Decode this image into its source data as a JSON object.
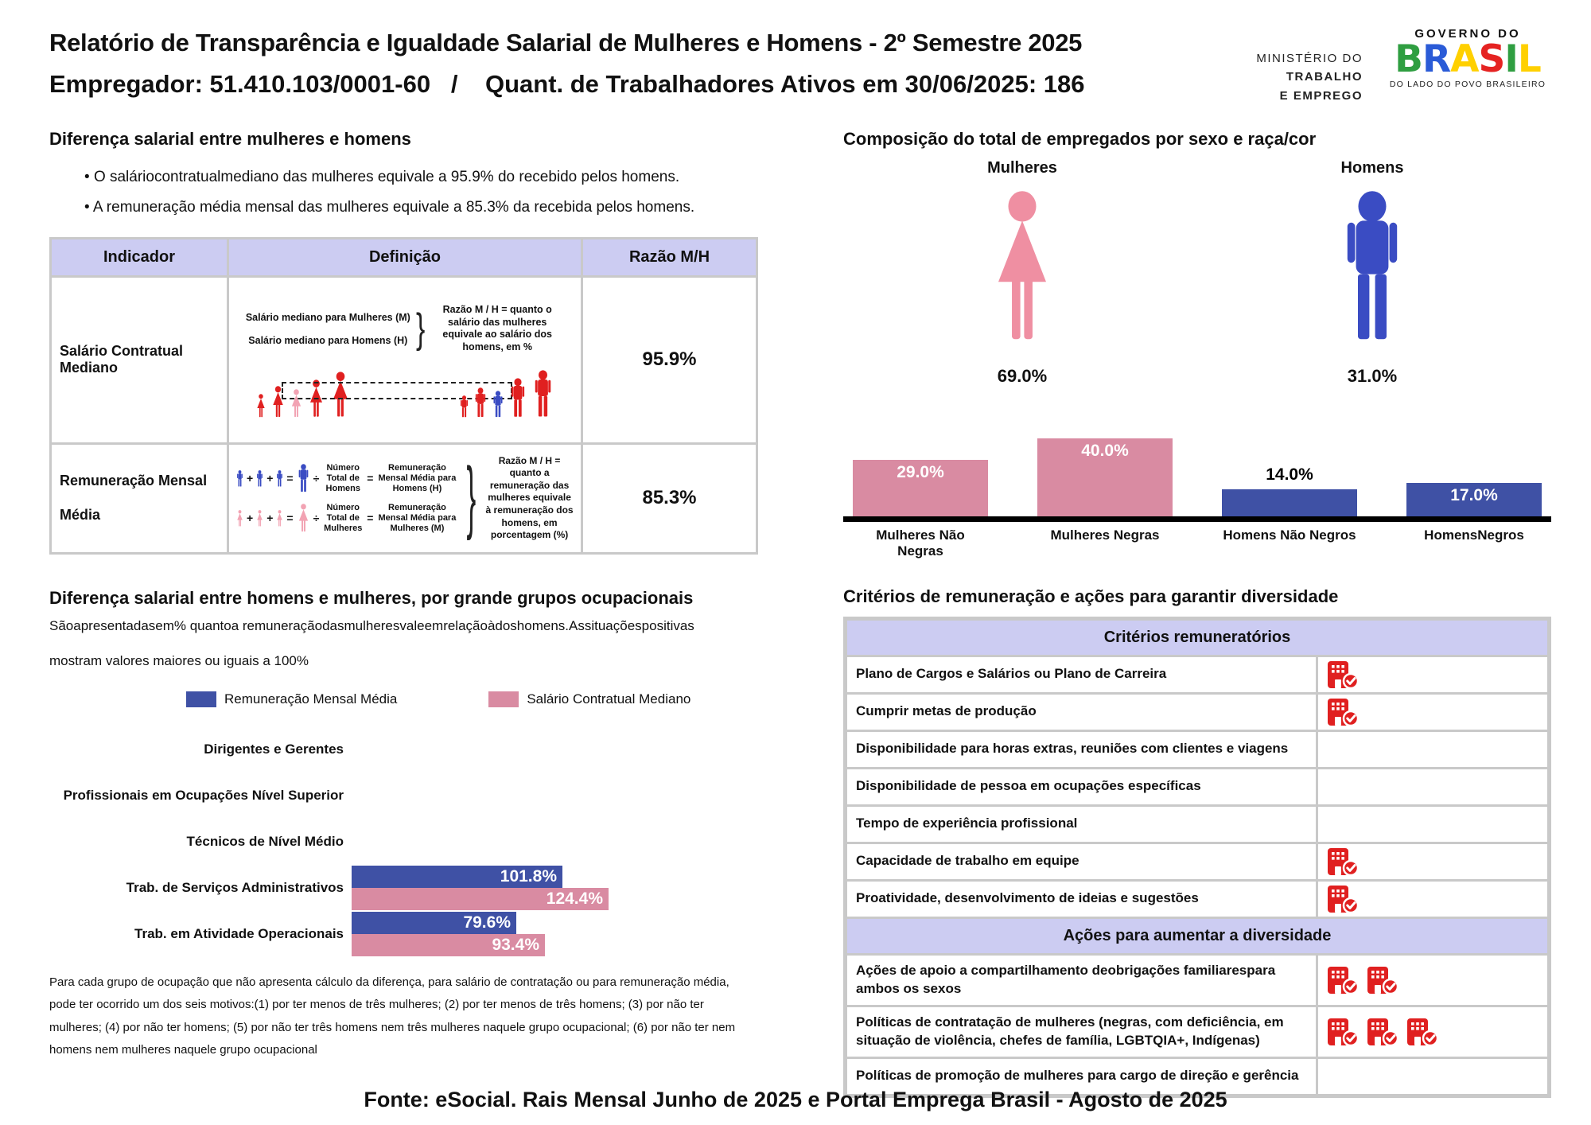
{
  "colors": {
    "red": "#e02020",
    "pink_figure": "#ef8fa2",
    "pink_light": "#f2a3b3",
    "bar_pink": "#d98ba2",
    "blue_figure": "#3a4cc3",
    "bar_blue": "#3f51a5",
    "lavender": "#ccccf2",
    "grid_gray": "#c9c9c9",
    "icon_red": "#e02020",
    "brand_letter_colors": [
      "#2f9e41",
      "#2a5bd7",
      "#ffd000",
      "#e52322",
      "#2f9e41",
      "#ffd000"
    ]
  },
  "header": {
    "title": "Relatório de Transparência e Igualdade Salarial de Mulheres e Homens - 2º Semestre 2025",
    "employer_line": "Empregador: 51.410.103/0001-60   /    Quant. de Trabalhadores Ativos em 30/06/2025: 186",
    "ministry": [
      "MINISTÉRIO DO",
      "TRABALHO",
      "E EMPREGO"
    ],
    "gov": {
      "top": "GOVERNO DO",
      "brand": "BRASIL",
      "bottom": "DO LADO DO POVO BRASILEIRO"
    }
  },
  "salary_gap": {
    "heading": "Diferença salarial entre mulheres e homens",
    "bullets": [
      "O saláriocontratualmediano das mulheres equivale a 95.9% do recebido pelos homens.",
      "A remuneração média mensal das mulheres equivale a 85.3% da recebida pelos homens."
    ],
    "table": {
      "headers": [
        "Indicador",
        "Definição",
        "Razão M/H"
      ],
      "rows": [
        {
          "indicator": "Salário Contratual Mediano",
          "ratio": "95.9%",
          "diagram": {
            "women_label": "Salário mediano para Mulheres (M)",
            "men_label": "Salário mediano para Homens (H)",
            "explanation": "Razão M / H = quanto o salário das mulheres equivale ao salário dos homens, em %"
          }
        },
        {
          "indicator": "Remuneração Mensal Média",
          "ratio": "85.3%",
          "diagram": {
            "men_num_label": "Número Total de Homens",
            "men_rem_label": "Remuneração Mensal Média para Homens (H)",
            "women_num_label": "Número Total de Mulheres",
            "women_rem_label": "Remuneração Mensal Média para Mulheres (M)",
            "explanation": "Razão M / H = quanto a remuneração das mulheres equivale à remuneração dos homens, em porcentagem (%)"
          }
        }
      ]
    }
  },
  "composition": {
    "heading": "Composição do total de empregados por sexo e raça/cor"
  },
  "occupational": {
    "heading": "Diferença salarial entre homens e mulheres, por grande grupos ocupacionais",
    "description": [
      "Sãoapresentadasem% quantoa remuneraçãodasmulheresvaleemrelaçãoàdoshomens.Assituaçõespositivas",
      "mostram valores maiores ou iguais a 100%"
    ],
    "legend": [
      {
        "label": "Remuneração Mensal Média",
        "color": "#3f51a5"
      },
      {
        "label": "Salário Contratual Mediano",
        "color": "#d98ba2"
      }
    ],
    "footnote": "Para cada grupo de ocupação que não apresenta cálculo da diferença, para salário de contratação ou para remuneração média, pode ter ocorrido um dos seis motivos:(1) por ter menos de três mulheres; (2) por ter menos de três homens; (3) por não ter mulheres; (4) por não ter homens; (5) por não ter três homens nem três mulheres naquele grupo ocupacional; (6) por não ter nem homens nem mulheres naquele grupo ocupacional"
  },
  "criteria": {
    "heading": "Critérios de remuneração e ações para garantir diversidade",
    "sections": [
      {
        "title": "Critérios remuneratórios",
        "rows": [
          {
            "text": "Plano de Cargos e Salários ou Plano de Carreira",
            "icons": 1
          },
          {
            "text": "Cumprir metas de produção",
            "icons": 1
          },
          {
            "text": "Disponibilidade para horas extras, reuniões com clientes e viagens",
            "icons": 0
          },
          {
            "text": "Disponibilidade de pessoa em ocupações específicas",
            "icons": 0
          },
          {
            "text": "Tempo de experiência profissional",
            "icons": 0
          },
          {
            "text": "Capacidade de trabalho em equipe",
            "icons": 1
          },
          {
            "text": "Proatividade, desenvolvimento de ideias e sugestões",
            "icons": 1
          }
        ]
      },
      {
        "title": "Ações para aumentar a diversidade",
        "rows": [
          {
            "text": "Ações de apoio a compartilhamento deobrigações familiarespara ambos os sexos",
            "icons": 2
          },
          {
            "text": "Políticas de contratação de mulheres (negras, com deficiência, em situação de violência, chefes de família, LGBTQIA+, Indígenas)",
            "icons": 3
          },
          {
            "text": "Políticas de promoção de mulheres para cargo de direção e gerência",
            "icons": 0
          }
        ]
      }
    ]
  },
  "footer": {
    "source": "Fonte: eSocial. Rais Mensal Junho de 2025 e Portal Emprega Brasil - Agosto de 2025"
  },
  "chart_data": [
    {
      "type": "pictogram",
      "title": "Composição do total de empregados por sexo e raça/cor",
      "categories": [
        "Mulheres",
        "Homens"
      ],
      "values": [
        69.0,
        31.0
      ],
      "unit": "%",
      "colors": [
        "#ef8fa2",
        "#3a4cc3"
      ]
    },
    {
      "type": "bar",
      "categories": [
        "Mulheres Não Negras",
        "Mulheres Negras",
        "Homens Não Negros",
        "HomensNegros"
      ],
      "values": [
        29.0,
        40.0,
        14.0,
        17.0
      ],
      "unit": "%",
      "colors": [
        "#d98ba2",
        "#d98ba2",
        "#3f51a5",
        "#3f51a5"
      ],
      "label_inside": [
        true,
        true,
        false,
        true
      ],
      "ylim": [
        0,
        45
      ],
      "grid": false,
      "axis_line": true
    },
    {
      "type": "bar",
      "orientation": "horizontal",
      "title": "Diferença salarial entre homens e mulheres, por grande grupos ocupacionais",
      "categories": [
        "Dirigentes e Gerentes",
        "Profissionais em Ocupações Nível Superior",
        "Técnicos de Nível Médio",
        "Trab. de Serviços Administrativos",
        "Trab. em Atividade Operacionais"
      ],
      "series": [
        {
          "name": "Remuneração Mensal Média",
          "color": "#3f51a5",
          "values": [
            null,
            null,
            null,
            101.8,
            79.6
          ]
        },
        {
          "name": "Salário Contratual Mediano",
          "color": "#d98ba2",
          "values": [
            null,
            null,
            null,
            124.4,
            93.4
          ]
        }
      ],
      "unit": "%",
      "xlim": [
        0,
        130
      ]
    }
  ]
}
